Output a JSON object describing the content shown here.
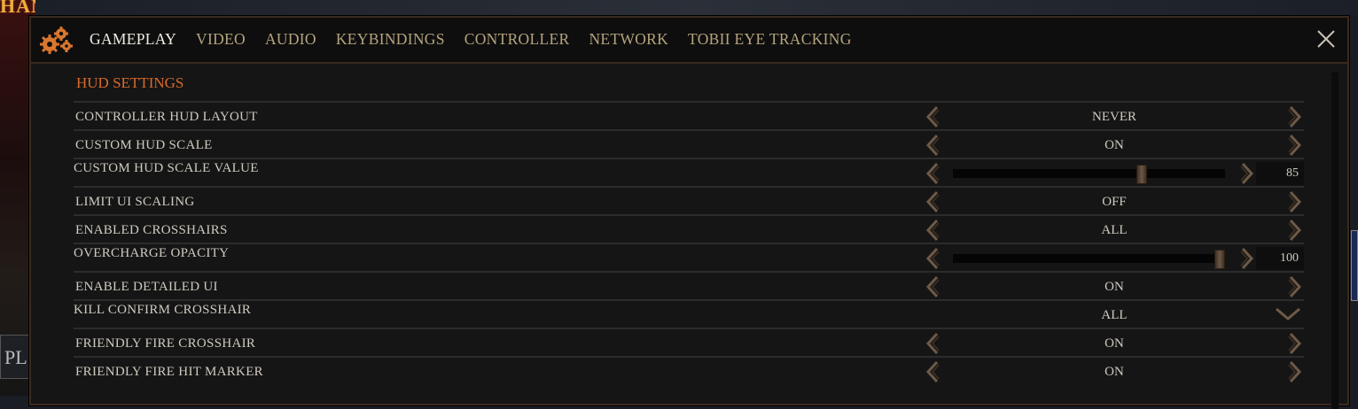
{
  "background": {
    "logo_text": "HAMMER",
    "button_fragment": "PL"
  },
  "header": {
    "tabs": [
      {
        "label": "GAMEPLAY",
        "active": true
      },
      {
        "label": "VIDEO"
      },
      {
        "label": "AUDIO"
      },
      {
        "label": "KEYBINDINGS"
      },
      {
        "label": "CONTROLLER"
      },
      {
        "label": "NETWORK"
      },
      {
        "label": "TOBII EYE TRACKING"
      }
    ]
  },
  "section": {
    "title": "HUD SETTINGS"
  },
  "settings": [
    {
      "label": "CONTROLLER HUD LAYOUT",
      "value": "NEVER",
      "type": "stepper"
    },
    {
      "label": "CUSTOM HUD SCALE",
      "value": "ON",
      "type": "stepper"
    },
    {
      "label": "CUSTOM HUD SCALE VALUE",
      "value": "85",
      "type": "slider",
      "fraction": 0.7
    },
    {
      "label": "LIMIT UI SCALING",
      "value": "OFF",
      "type": "stepper"
    },
    {
      "label": "ENABLED CROSSHAIRS",
      "value": "ALL",
      "type": "stepper"
    },
    {
      "label": "OVERCHARGE OPACITY",
      "value": "100",
      "type": "slider",
      "fraction": 1.0
    },
    {
      "label": "ENABLE DETAILED UI",
      "value": "ON",
      "type": "stepper"
    },
    {
      "label": "KILL CONFIRM CROSSHAIR",
      "value": "ALL",
      "type": "dropdown"
    },
    {
      "label": "FRIENDLY FIRE CROSSHAIR",
      "value": "ON",
      "type": "stepper"
    },
    {
      "label": "FRIENDLY FIRE HIT MARKER",
      "value": "ON",
      "type": "stepper"
    }
  ],
  "colors": {
    "accent": "#d96a2a",
    "tab_inactive": "#b5a47d",
    "tab_active": "#f0ece2",
    "text": "#cfcac0"
  }
}
